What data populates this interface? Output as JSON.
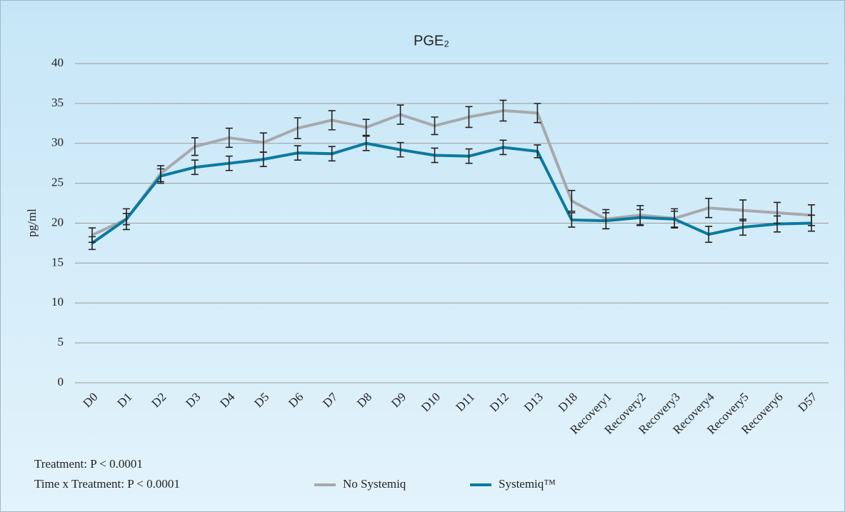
{
  "chart_data": {
    "type": "line",
    "title": "PGE₂",
    "y_label": "pg/ml",
    "annotations": [
      "Treatment: P < 0.0001",
      "Time x Treatment: P < 0.0001"
    ],
    "categories": [
      "D0",
      "D1",
      "D2",
      "D3",
      "D4",
      "D5",
      "D6",
      "D7",
      "D8",
      "D9",
      "D10",
      "D11",
      "D12",
      "D13",
      "D18",
      "Recovery1",
      "Recovery2",
      "Recovery3",
      "Recovery4",
      "Recovery5",
      "Recovery6",
      "D57"
    ],
    "series": [
      {
        "name": "No Systemiq",
        "color": "#a7a9ac",
        "values": [
          18.5,
          20.5,
          26.2,
          29.6,
          30.7,
          30.1,
          31.9,
          32.9,
          32.0,
          33.6,
          32.2,
          33.3,
          34.1,
          33.8,
          22.8,
          20.5,
          21.0,
          20.6,
          21.9,
          21.6,
          21.3,
          21.0
        ],
        "errors": [
          0.9,
          1.3,
          1.0,
          1.1,
          1.2,
          1.2,
          1.3,
          1.2,
          1.0,
          1.2,
          1.1,
          1.3,
          1.3,
          1.2,
          1.3,
          1.2,
          1.2,
          1.2,
          1.2,
          1.3,
          1.3,
          1.3
        ]
      },
      {
        "name": "Systemiq™",
        "color": "#0a7aa0",
        "values": [
          17.5,
          20.5,
          25.9,
          27.0,
          27.5,
          28.0,
          28.8,
          28.7,
          30.0,
          29.2,
          28.5,
          28.4,
          29.5,
          29.0,
          20.4,
          20.3,
          20.7,
          20.5,
          18.6,
          19.5,
          19.9,
          20.0
        ],
        "errors": [
          0.8,
          0.7,
          0.9,
          0.9,
          0.9,
          0.9,
          0.9,
          0.9,
          0.9,
          0.9,
          0.9,
          0.9,
          0.9,
          0.8,
          0.9,
          1.0,
          1.0,
          1.0,
          1.0,
          1.0,
          1.0,
          1.0
        ]
      }
    ],
    "ylim": [
      0,
      40
    ],
    "yticks": [
      0,
      5,
      10,
      15,
      20,
      25,
      30,
      35,
      40
    ],
    "grid": true
  }
}
